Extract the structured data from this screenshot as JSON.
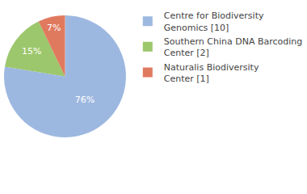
{
  "chart_data": {
    "type": "pie",
    "categories": [
      "Centre for Biodiversity Genomics [10]",
      "Southern China DNA Barcoding Center [2]",
      "Naturalis Biodiversity Center [1]"
    ],
    "values": [
      76,
      15,
      7
    ],
    "value_labels": [
      "76%",
      "15%",
      "7%"
    ],
    "colors": [
      "#9db8e0",
      "#9cc76c",
      "#e07a5f"
    ],
    "data_labels": true,
    "legend": "top right"
  }
}
